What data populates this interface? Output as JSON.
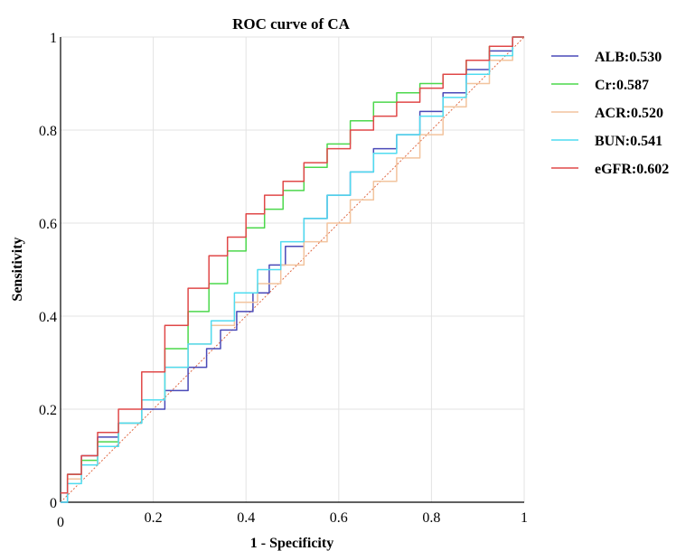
{
  "chart_data": {
    "type": "line",
    "title": "ROC curve of CA",
    "xlabel": "1 - Specificity",
    "ylabel": "Sensitivity",
    "xlim": [
      0,
      1
    ],
    "ylim": [
      0,
      1
    ],
    "xticks": [
      "0",
      "0.2",
      "0.4",
      "0.6",
      "0.8",
      "1"
    ],
    "yticks": [
      "0",
      "0.2",
      "0.4",
      "0.6",
      "0.8",
      "1"
    ],
    "grid": true,
    "legend_position": "right",
    "reference_line": {
      "x": [
        0,
        1
      ],
      "y": [
        0,
        1
      ],
      "color": "#e06a45"
    },
    "series": [
      {
        "name": "ALB:0.530",
        "color": "#4a4ab8",
        "x": [
          0.0,
          0.03,
          0.06,
          0.1,
          0.15,
          0.2,
          0.25,
          0.3,
          0.33,
          0.36,
          0.4,
          0.43,
          0.47,
          0.5,
          0.55,
          0.6,
          0.65,
          0.7,
          0.75,
          0.8,
          0.85,
          0.9,
          0.95,
          1.0
        ],
        "y": [
          0.0,
          0.06,
          0.1,
          0.14,
          0.17,
          0.2,
          0.24,
          0.29,
          0.33,
          0.37,
          0.41,
          0.45,
          0.51,
          0.55,
          0.61,
          0.66,
          0.71,
          0.76,
          0.79,
          0.84,
          0.88,
          0.93,
          0.97,
          1.0
        ]
      },
      {
        "name": "Cr:0.587",
        "color": "#4cd84c",
        "x": [
          0.0,
          0.03,
          0.06,
          0.1,
          0.15,
          0.2,
          0.25,
          0.3,
          0.34,
          0.38,
          0.42,
          0.46,
          0.5,
          0.55,
          0.6,
          0.65,
          0.7,
          0.75,
          0.8,
          0.85,
          0.9,
          0.95,
          1.0
        ],
        "y": [
          0.02,
          0.06,
          0.09,
          0.13,
          0.17,
          0.22,
          0.33,
          0.41,
          0.47,
          0.54,
          0.59,
          0.63,
          0.67,
          0.72,
          0.77,
          0.82,
          0.86,
          0.88,
          0.9,
          0.92,
          0.95,
          0.98,
          1.0
        ]
      },
      {
        "name": "ACR:0.520",
        "color": "#f2c49e",
        "x": [
          0.0,
          0.03,
          0.06,
          0.1,
          0.15,
          0.2,
          0.25,
          0.3,
          0.35,
          0.4,
          0.45,
          0.5,
          0.55,
          0.6,
          0.65,
          0.7,
          0.75,
          0.8,
          0.85,
          0.9,
          0.95,
          1.0
        ],
        "y": [
          0.02,
          0.05,
          0.08,
          0.12,
          0.17,
          0.22,
          0.29,
          0.34,
          0.38,
          0.43,
          0.47,
          0.51,
          0.56,
          0.6,
          0.65,
          0.69,
          0.74,
          0.79,
          0.85,
          0.9,
          0.95,
          1.0
        ]
      },
      {
        "name": "BUN:0.541",
        "color": "#4fdcf0",
        "x": [
          0.0,
          0.03,
          0.06,
          0.1,
          0.15,
          0.2,
          0.25,
          0.3,
          0.35,
          0.4,
          0.45,
          0.5,
          0.55,
          0.6,
          0.65,
          0.7,
          0.75,
          0.8,
          0.85,
          0.9,
          0.95,
          1.0
        ],
        "y": [
          0.0,
          0.04,
          0.08,
          0.12,
          0.17,
          0.22,
          0.29,
          0.34,
          0.39,
          0.45,
          0.5,
          0.56,
          0.61,
          0.66,
          0.71,
          0.75,
          0.79,
          0.83,
          0.87,
          0.92,
          0.96,
          1.0
        ]
      },
      {
        "name": "eGFR:0.602",
        "color": "#e04848",
        "x": [
          0.0,
          0.03,
          0.06,
          0.1,
          0.15,
          0.2,
          0.25,
          0.3,
          0.34,
          0.38,
          0.42,
          0.46,
          0.5,
          0.55,
          0.6,
          0.65,
          0.7,
          0.75,
          0.8,
          0.85,
          0.9,
          0.95,
          1.0
        ],
        "y": [
          0.02,
          0.06,
          0.1,
          0.15,
          0.2,
          0.28,
          0.38,
          0.46,
          0.53,
          0.57,
          0.62,
          0.66,
          0.69,
          0.73,
          0.76,
          0.8,
          0.83,
          0.86,
          0.89,
          0.92,
          0.95,
          0.98,
          1.0
        ]
      }
    ]
  }
}
